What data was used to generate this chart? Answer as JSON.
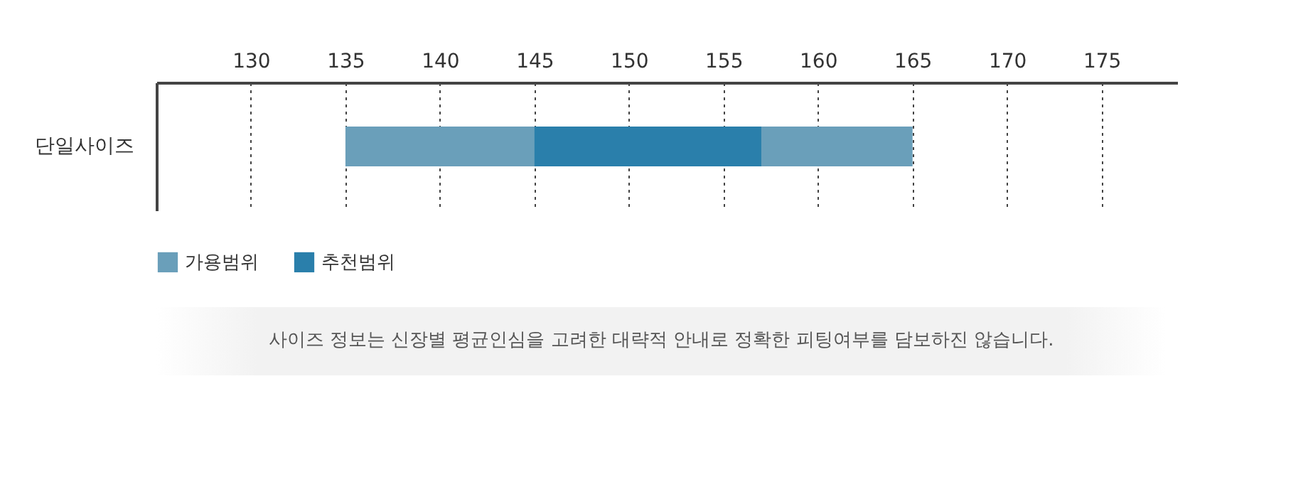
{
  "chart_data": {
    "type": "bar",
    "orientation": "horizontal",
    "categories": [
      "단일사이즈"
    ],
    "series": [
      {
        "name": "가용범위",
        "color": "#6a9fba",
        "values": [
          30
        ],
        "base": [
          135
        ]
      },
      {
        "name": "추천범위",
        "color": "#2a7fab",
        "values": [
          12
        ],
        "base": [
          145
        ]
      }
    ],
    "xlim": [
      125,
      179
    ],
    "xticks": [
      130,
      135,
      140,
      145,
      150,
      155,
      160,
      165,
      170,
      175
    ],
    "grid": "x",
    "legend": "bottom left",
    "annotations": [
      "사이즈 정보는 신장별 평균인심을 고려한 대략적 안내로 정확한 피팅여부를 담보하진 않습니다."
    ]
  }
}
